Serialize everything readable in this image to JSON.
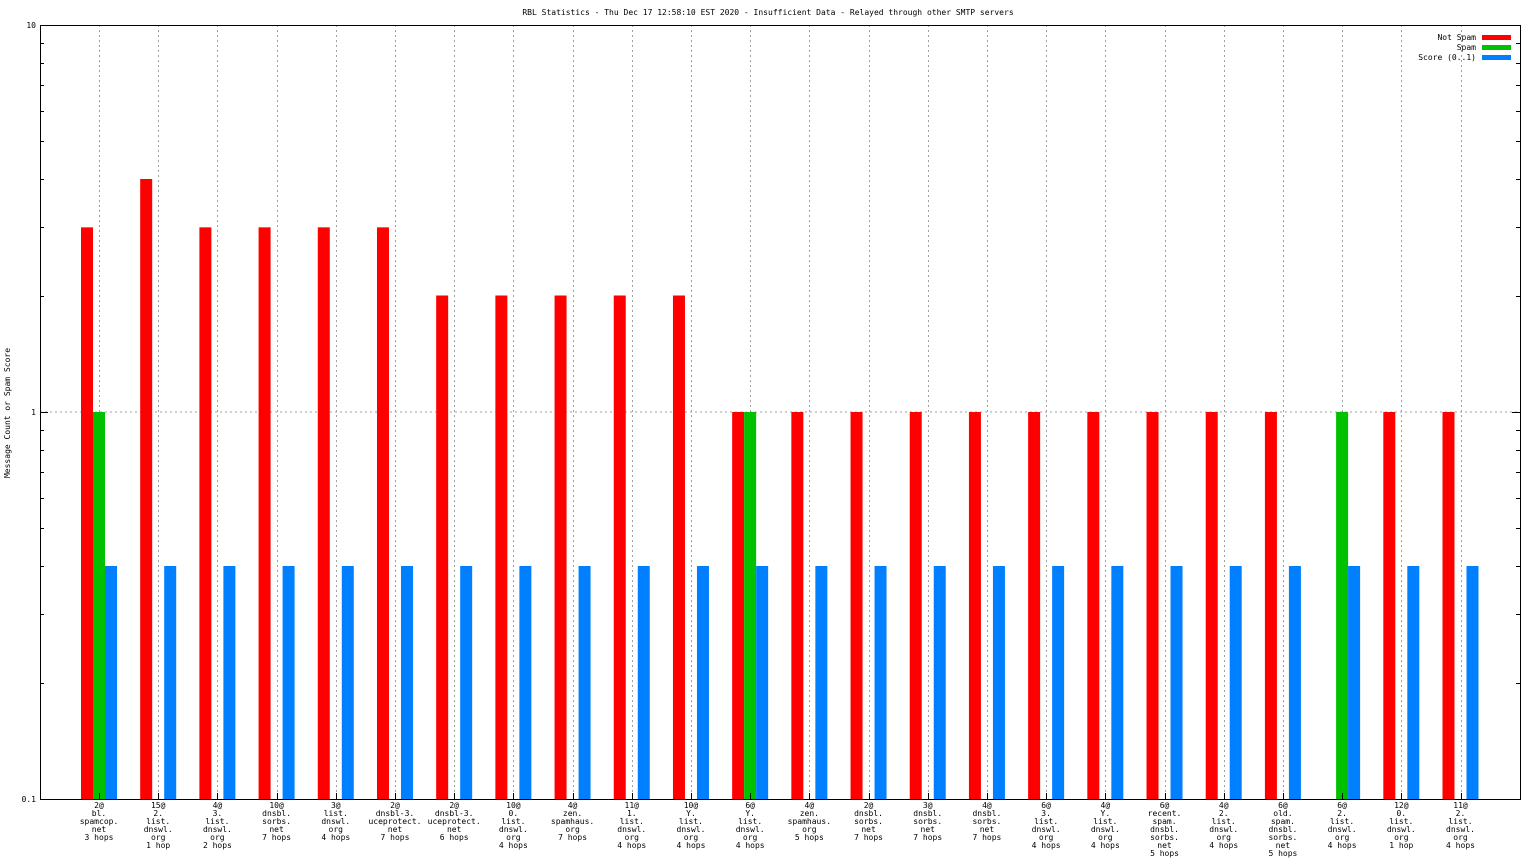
{
  "chart_data": {
    "type": "bar",
    "title": "RBL Statistics - Thu Dec 17 12:58:10 EST 2020 - Insufficient Data - Relayed through other SMTP servers",
    "ylabel": "Message Count or Spam Score",
    "xlabel": "",
    "yscale": "log",
    "ylim": [
      0.1,
      10
    ],
    "yticks": [
      "10",
      "1",
      "0.1"
    ],
    "grid": true,
    "legend_position": "top-right",
    "categories": [
      [
        "2@",
        "bl.",
        "spamcop.",
        "net",
        "3 hops"
      ],
      [
        "15@",
        "2.",
        "list.",
        "dnswl.",
        "org",
        "1 hop"
      ],
      [
        "4@",
        "3.",
        "list.",
        "dnswl.",
        "org",
        "2 hops"
      ],
      [
        "10@",
        "dnsbl.",
        "sorbs.",
        "net",
        "7 hops"
      ],
      [
        "3@",
        "list.",
        "dnswl.",
        "org",
        "4 hops"
      ],
      [
        "2@",
        "dnsbl-3.",
        "uceprotect.",
        "net",
        "7 hops"
      ],
      [
        "2@",
        "dnsbl-3.",
        "uceprotect.",
        "net",
        "6 hops"
      ],
      [
        "10@",
        "0.",
        "list.",
        "dnswl.",
        "org",
        "4 hops"
      ],
      [
        "4@",
        "zen.",
        "spamhaus.",
        "org",
        "7 hops"
      ],
      [
        "11@",
        "1.",
        "list.",
        "dnswl.",
        "org",
        "4 hops"
      ],
      [
        "10@",
        "Y.",
        "list.",
        "dnswl.",
        "org",
        "4 hops"
      ],
      [
        "6@",
        "Y.",
        "list.",
        "dnswl.",
        "org",
        "4 hops"
      ],
      [
        "4@",
        "zen.",
        "spamhaus.",
        "org",
        "5 hops"
      ],
      [
        "2@",
        "dnsbl.",
        "sorbs.",
        "net",
        "7 hops"
      ],
      [
        "3@",
        "dnsbl.",
        "sorbs.",
        "net",
        "7 hops"
      ],
      [
        "4@",
        "dnsbl.",
        "sorbs.",
        "net",
        "7 hops"
      ],
      [
        "6@",
        "3.",
        "list.",
        "dnswl.",
        "org",
        "4 hops"
      ],
      [
        "4@",
        "Y.",
        "list.",
        "dnswl.",
        "org",
        "4 hops"
      ],
      [
        "6@",
        "recent.",
        "spam.",
        "dnsbl.",
        "sorbs.",
        "net",
        "5 hops"
      ],
      [
        "4@",
        "2.",
        "list.",
        "dnswl.",
        "org",
        "4 hops"
      ],
      [
        "6@",
        "old.",
        "spam.",
        "dnsbl.",
        "sorbs.",
        "net",
        "5 hops"
      ],
      [
        "6@",
        "2.",
        "list.",
        "dnswl.",
        "org",
        "4 hops"
      ],
      [
        "12@",
        "0.",
        "list.",
        "dnswl.",
        "org",
        "1 hop"
      ],
      [
        "11@",
        "2.",
        "list.",
        "dnswl.",
        "org",
        "4 hops"
      ]
    ],
    "series": [
      {
        "name": "Not Spam",
        "color": "#ff0000",
        "values": [
          3,
          4,
          3,
          3,
          3,
          3,
          2,
          2,
          2,
          2,
          2,
          1,
          1,
          1,
          1,
          1,
          1,
          1,
          1,
          1,
          1,
          0,
          1,
          1
        ]
      },
      {
        "name": "Spam",
        "color": "#00c000",
        "values": [
          1,
          0,
          0,
          0,
          0,
          0,
          0,
          0,
          0,
          0,
          0,
          1,
          0,
          0,
          0,
          0,
          0,
          0,
          0,
          0,
          0,
          1,
          0,
          0
        ]
      },
      {
        "name": "Score (0..1)",
        "color": "#0080ff",
        "values": [
          0.4,
          0.4,
          0.4,
          0.4,
          0.4,
          0.4,
          0.4,
          0.4,
          0.4,
          0.4,
          0.4,
          0.4,
          0.4,
          0.4,
          0.4,
          0.4,
          0.4,
          0.4,
          0.4,
          0.4,
          0.4,
          0.4,
          0.4,
          0.4
        ]
      }
    ]
  }
}
